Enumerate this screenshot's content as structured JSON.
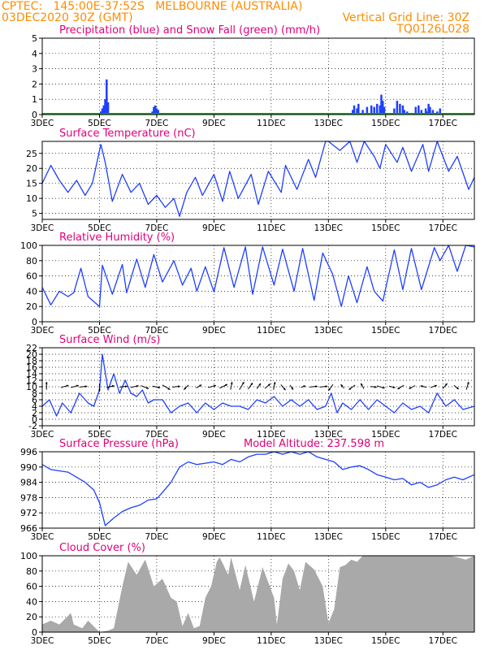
{
  "header": {
    "station_line": "CPTEC:   145:00E-37:52S   MELBOURNE (AUSTRALIA)",
    "date_line": "03DEC2020 30Z (GMT)",
    "grid_line": "Vertical Grid Line: 30Z",
    "code": "TQ0126L028"
  },
  "colors": {
    "header_text": "#ff8c00",
    "panel_title": "#e0007a",
    "line": "#1f3fff",
    "precip": "#1f3fff",
    "snow": "#00b000",
    "wind": "#33cc33",
    "arrow": "#000000",
    "cloud_fill": "#a9a9a9"
  },
  "x_axis": {
    "start_day": 3,
    "end_day": 18.1,
    "ticks": [
      "3DEC",
      "5DEC",
      "7DEC",
      "9DEC",
      "11DEC",
      "13DEC",
      "15DEC",
      "17DEC"
    ],
    "tick_days": [
      3,
      5,
      7,
      9,
      11,
      13,
      15,
      17
    ]
  },
  "chart_data": [
    {
      "id": "precip",
      "type": "bar",
      "title": "Precipitation (blue) and Snow Fall (green) (mm/h)",
      "ylim": [
        0,
        5
      ],
      "yticks": [
        0,
        1,
        2,
        3,
        4,
        5
      ],
      "x": [
        5.05,
        5.1,
        5.15,
        5.2,
        5.25,
        5.3,
        6.85,
        6.9,
        6.95,
        7.0,
        7.05,
        13.85,
        13.9,
        14.0,
        14.05,
        14.2,
        14.35,
        14.5,
        14.6,
        14.7,
        14.8,
        14.85,
        14.9,
        14.95,
        15.3,
        15.4,
        15.5,
        15.6,
        15.65,
        15.75,
        16.05,
        16.15,
        16.25,
        16.4,
        16.45,
        16.5,
        16.55,
        16.65,
        16.8,
        16.9
      ],
      "values": [
        0.2,
        0.4,
        0.6,
        1.0,
        2.3,
        0.8,
        0.2,
        0.5,
        0.6,
        0.4,
        0.3,
        0.3,
        0.6,
        0.4,
        0.7,
        0.3,
        0.5,
        0.6,
        0.5,
        0.7,
        0.6,
        1.3,
        0.9,
        0.5,
        0.4,
        0.9,
        0.7,
        0.6,
        0.3,
        0.2,
        0.5,
        0.6,
        0.3,
        0.4,
        0.2,
        0.7,
        0.5,
        0.3,
        0.2,
        0.4
      ]
    },
    {
      "id": "temp",
      "type": "line",
      "title": "Surface Temperature (nC)",
      "ylim": [
        3,
        29
      ],
      "yticks": [
        5,
        10,
        15,
        20,
        25
      ],
      "x": [
        3.0,
        3.3,
        3.6,
        3.9,
        4.2,
        4.5,
        4.75,
        5.05,
        5.2,
        5.45,
        5.8,
        6.1,
        6.4,
        6.7,
        7.0,
        7.3,
        7.6,
        7.8,
        8.05,
        8.35,
        8.6,
        9.0,
        9.3,
        9.55,
        9.85,
        10.3,
        10.55,
        10.9,
        11.35,
        11.5,
        11.9,
        12.3,
        12.55,
        12.9,
        13.0,
        13.4,
        13.75,
        14.0,
        14.25,
        14.6,
        14.8,
        15.0,
        15.4,
        15.6,
        15.9,
        16.3,
        16.5,
        16.8,
        17.2,
        17.5,
        17.9,
        18.1
      ],
      "values": [
        15,
        21,
        16,
        12,
        16,
        11,
        15,
        28,
        22,
        9,
        18,
        12,
        15,
        8,
        11,
        7,
        10,
        4,
        12,
        17,
        11,
        18,
        9,
        19,
        10,
        18,
        8,
        19,
        12,
        21,
        13,
        23,
        17,
        29,
        30,
        26,
        29,
        22,
        29,
        24,
        20,
        28,
        22,
        27,
        19,
        28,
        19,
        29,
        19,
        24,
        13,
        17
      ]
    },
    {
      "id": "rh",
      "type": "line",
      "title": "Relative Humidity (%)",
      "ylim": [
        0,
        100
      ],
      "yticks": [
        0,
        20,
        40,
        60,
        80,
        100
      ],
      "x": [
        3.0,
        3.3,
        3.6,
        3.9,
        4.1,
        4.35,
        4.6,
        5.0,
        5.1,
        5.45,
        5.8,
        5.95,
        6.3,
        6.6,
        6.9,
        7.2,
        7.6,
        7.9,
        8.2,
        8.4,
        8.7,
        9.0,
        9.35,
        9.7,
        10.1,
        10.35,
        10.7,
        11.1,
        11.4,
        11.8,
        12.1,
        12.5,
        12.8,
        13.15,
        13.45,
        13.7,
        14.0,
        14.35,
        14.6,
        14.9,
        15.3,
        15.6,
        15.9,
        16.25,
        16.7,
        16.9,
        17.2,
        17.5,
        17.8,
        18.1
      ],
      "values": [
        45,
        22,
        40,
        33,
        38,
        70,
        33,
        20,
        74,
        36,
        75,
        38,
        82,
        45,
        88,
        52,
        80,
        48,
        70,
        40,
        72,
        39,
        97,
        45,
        98,
        36,
        98,
        48,
        95,
        40,
        96,
        28,
        90,
        62,
        20,
        60,
        25,
        72,
        40,
        27,
        94,
        42,
        96,
        42,
        97,
        80,
        100,
        66,
        100,
        98
      ]
    },
    {
      "id": "wind",
      "type": "line",
      "title": "Surface Wind (m/s)",
      "ylim": [
        -2,
        22
      ],
      "yticks": [
        -2,
        0,
        2,
        4,
        6,
        8,
        10,
        12,
        14,
        16,
        18,
        20,
        22
      ],
      "x": [
        3.0,
        3.25,
        3.5,
        3.7,
        4.0,
        4.3,
        4.6,
        4.8,
        5.0,
        5.1,
        5.3,
        5.5,
        5.7,
        5.9,
        6.1,
        6.3,
        6.5,
        6.7,
        6.9,
        7.2,
        7.5,
        7.8,
        8.1,
        8.4,
        8.7,
        9.0,
        9.3,
        9.6,
        9.9,
        10.2,
        10.5,
        10.8,
        11.1,
        11.4,
        11.7,
        12.0,
        12.3,
        12.6,
        12.9,
        13.1,
        13.3,
        13.5,
        13.8,
        14.1,
        14.4,
        14.7,
        15.0,
        15.3,
        15.6,
        15.9,
        16.2,
        16.5,
        16.8,
        17.1,
        17.4,
        17.7,
        18.1
      ],
      "values": [
        4,
        6,
        1,
        5,
        2,
        8,
        5,
        4,
        9,
        20,
        9,
        14,
        8,
        12,
        8,
        7,
        9,
        5,
        6,
        6,
        2,
        4,
        5,
        2,
        5,
        3,
        5,
        4,
        4,
        3,
        6,
        5,
        7,
        4,
        6,
        4,
        6,
        3,
        4,
        8,
        2,
        5,
        3,
        6,
        3,
        6,
        4,
        2,
        5,
        3,
        4,
        2,
        8,
        4,
        6,
        3,
        4
      ]
    },
    {
      "id": "pressure",
      "type": "line",
      "title": "Surface Pressure (hPa)",
      "annotation": "Model Altitude: 237.598 m",
      "ylim": [
        966,
        996
      ],
      "yticks": [
        966,
        972,
        978,
        984,
        990,
        996
      ],
      "x": [
        3.0,
        3.3,
        3.6,
        3.9,
        4.2,
        4.5,
        4.8,
        5.0,
        5.2,
        5.5,
        5.8,
        6.1,
        6.4,
        6.7,
        7.0,
        7.2,
        7.5,
        7.8,
        8.1,
        8.4,
        8.7,
        9.0,
        9.3,
        9.6,
        9.9,
        10.2,
        10.5,
        10.8,
        11.1,
        11.4,
        11.7,
        12.0,
        12.3,
        12.6,
        12.9,
        13.2,
        13.5,
        13.8,
        14.1,
        14.4,
        14.7,
        15.0,
        15.3,
        15.6,
        15.9,
        16.2,
        16.5,
        16.8,
        17.1,
        17.4,
        17.7,
        18.1
      ],
      "values": [
        991,
        989,
        988.5,
        988,
        986,
        984,
        981,
        976,
        967,
        970,
        972.5,
        974,
        975,
        977,
        977.5,
        980,
        984,
        990,
        992,
        991,
        991.5,
        992,
        991,
        993,
        992,
        994,
        995,
        995,
        996,
        995,
        997,
        995,
        996,
        994,
        993,
        992,
        989,
        990,
        990.5,
        989,
        987,
        986,
        985,
        985.5,
        983,
        984,
        982,
        983,
        985,
        986,
        985,
        987
      ]
    },
    {
      "id": "cloud",
      "type": "area",
      "title": "Cloud Cover (%)",
      "ylim": [
        0,
        100
      ],
      "yticks": [
        0,
        20,
        40,
        60,
        80,
        100
      ],
      "x": [
        3.0,
        3.3,
        3.6,
        4.0,
        4.1,
        4.4,
        4.6,
        5.0,
        5.3,
        5.5,
        5.8,
        6.0,
        6.3,
        6.6,
        6.9,
        7.2,
        7.5,
        7.7,
        7.9,
        8.1,
        8.3,
        8.5,
        8.7,
        8.9,
        9.1,
        9.2,
        9.5,
        9.6,
        9.9,
        10.1,
        10.4,
        10.7,
        10.9,
        11.1,
        11.2,
        11.4,
        11.6,
        11.8,
        12.0,
        12.2,
        12.5,
        12.8,
        13.0,
        13.2,
        13.4,
        13.6,
        13.8,
        14.0,
        14.2,
        14.5,
        14.8,
        15.1,
        15.4,
        15.7,
        16.0,
        16.3,
        16.6,
        16.9,
        17.2,
        17.5,
        17.8,
        18.1
      ],
      "values": [
        10,
        15,
        10,
        25,
        10,
        5,
        15,
        0,
        2,
        5,
        60,
        92,
        75,
        95,
        60,
        70,
        45,
        40,
        8,
        25,
        5,
        8,
        45,
        60,
        92,
        98,
        75,
        98,
        55,
        88,
        40,
        85,
        65,
        45,
        10,
        70,
        90,
        80,
        55,
        92,
        82,
        60,
        12,
        30,
        85,
        88,
        95,
        92,
        100,
        100,
        100,
        100,
        100,
        100,
        100,
        100,
        100,
        100,
        100,
        98,
        95,
        100
      ]
    }
  ],
  "wind_vectors": {
    "x": [
      3.15,
      3.75,
      4.1,
      4.4,
      5.0,
      5.35,
      5.8,
      6.2,
      6.55,
      6.95,
      7.3,
      7.65,
      8.05,
      8.45,
      8.9,
      9.3,
      9.6,
      9.95,
      10.25,
      10.55,
      10.85,
      11.1,
      11.4,
      11.7,
      12.1,
      12.45,
      12.8,
      13.1,
      13.5,
      13.85,
      14.2,
      14.55,
      14.8,
      15.2,
      15.55,
      15.95,
      16.35,
      16.65,
      17.05,
      17.45,
      17.85
    ],
    "u": [
      0,
      1,
      1,
      1,
      0,
      1,
      1,
      1,
      1,
      1,
      1,
      1,
      -0.6,
      0.7,
      1,
      1,
      0.2,
      0.6,
      0.6,
      0.5,
      0.7,
      0.2,
      0.6,
      0.4,
      0.6,
      1,
      1,
      -0.6,
      -0.4,
      -0.8,
      -0.4,
      0.8,
      1,
      0.8,
      -0.8,
      -0.8,
      -0.8,
      0.8,
      0.6,
      0.6,
      0.3
    ],
    "v": [
      1,
      0.3,
      0.3,
      0.1,
      -1,
      0.2,
      0.1,
      0.2,
      -0.4,
      -0.2,
      -0.6,
      0.1,
      -0.6,
      0.4,
      0.3,
      0.5,
      1,
      1,
      0.8,
      0.7,
      0.6,
      1,
      -0.7,
      -0.6,
      0.2,
      0.1,
      0.1,
      -0.8,
      0.5,
      -0.6,
      0.7,
      -0.1,
      -0.3,
      -0.2,
      -0.5,
      -0.4,
      0.2,
      0.3,
      0.7,
      -0.5,
      1
    ]
  }
}
